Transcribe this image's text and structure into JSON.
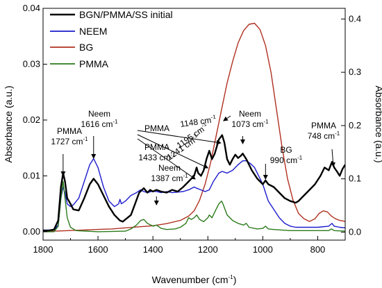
{
  "chart_data": {
    "type": "line",
    "xlabel": "Wavenumber (cm",
    "xlabel_sup": "-1",
    "xlabel_end": ")",
    "ylabel_left": "Absorbance (a.u.)",
    "ylabel_right": "Absorbance (a.u.)",
    "xlim": [
      1800,
      700
    ],
    "ylim_left": [
      -0.0015,
      0.04
    ],
    "ylim_right": [
      -0.015,
      0.42
    ],
    "x_ticks": [
      1800,
      1600,
      1400,
      1200,
      1000,
      800
    ],
    "y_ticks_left": [
      "0.00",
      "0.01",
      "0.02",
      "0.03",
      "0.04"
    ],
    "y_ticks_right": [
      "0.0",
      "0.1",
      "0.2",
      "0.3",
      "0.4"
    ],
    "legend_position": "top-left",
    "series": [
      {
        "name": "BGN/PMMA/SS initial",
        "color": "#000000",
        "axis": "left",
        "points": [
          [
            1800,
            0.0002
          ],
          [
            1780,
            0.0002
          ],
          [
            1760,
            0.0004
          ],
          [
            1745,
            0.002
          ],
          [
            1735,
            0.008
          ],
          [
            1727,
            0.0105
          ],
          [
            1720,
            0.009
          ],
          [
            1712,
            0.006
          ],
          [
            1700,
            0.005
          ],
          [
            1690,
            0.004
          ],
          [
            1670,
            0.0038
          ],
          [
            1650,
            0.006
          ],
          [
            1630,
            0.0085
          ],
          [
            1616,
            0.0095
          ],
          [
            1600,
            0.0085
          ],
          [
            1580,
            0.0065
          ],
          [
            1560,
            0.0045
          ],
          [
            1540,
            0.003
          ],
          [
            1520,
            0.002
          ],
          [
            1510,
            0.0018
          ],
          [
            1500,
            0.0022
          ],
          [
            1480,
            0.003
          ],
          [
            1465,
            0.005
          ],
          [
            1450,
            0.007
          ],
          [
            1440,
            0.0075
          ],
          [
            1433,
            0.0078
          ],
          [
            1420,
            0.007
          ],
          [
            1410,
            0.0075
          ],
          [
            1400,
            0.0072
          ],
          [
            1387,
            0.0075
          ],
          [
            1370,
            0.0072
          ],
          [
            1350,
            0.007
          ],
          [
            1330,
            0.0075
          ],
          [
            1310,
            0.0072
          ],
          [
            1290,
            0.008
          ],
          [
            1270,
            0.009
          ],
          [
            1260,
            0.0095
          ],
          [
            1250,
            0.01
          ],
          [
            1241,
            0.0115
          ],
          [
            1235,
            0.0105
          ],
          [
            1225,
            0.01
          ],
          [
            1215,
            0.011
          ],
          [
            1205,
            0.013
          ],
          [
            1195,
            0.0145
          ],
          [
            1185,
            0.013
          ],
          [
            1175,
            0.014
          ],
          [
            1160,
            0.0165
          ],
          [
            1148,
            0.0173
          ],
          [
            1140,
            0.016
          ],
          [
            1130,
            0.013
          ],
          [
            1120,
            0.012
          ],
          [
            1110,
            0.013
          ],
          [
            1100,
            0.0138
          ],
          [
            1090,
            0.0132
          ],
          [
            1080,
            0.0136
          ],
          [
            1073,
            0.014
          ],
          [
            1060,
            0.013
          ],
          [
            1050,
            0.012
          ],
          [
            1040,
            0.011
          ],
          [
            1020,
            0.0095
          ],
          [
            1000,
            0.0085
          ],
          [
            990,
            0.0092
          ],
          [
            980,
            0.0085
          ],
          [
            960,
            0.008
          ],
          [
            940,
            0.007
          ],
          [
            920,
            0.006
          ],
          [
            900,
            0.0055
          ],
          [
            880,
            0.0052
          ],
          [
            870,
            0.0055
          ],
          [
            850,
            0.0065
          ],
          [
            830,
            0.0075
          ],
          [
            810,
            0.0085
          ],
          [
            790,
            0.01
          ],
          [
            775,
            0.0115
          ],
          [
            760,
            0.011
          ],
          [
            748,
            0.0125
          ],
          [
            740,
            0.0115
          ],
          [
            730,
            0.0108
          ],
          [
            720,
            0.01
          ],
          [
            710,
            0.0112
          ],
          [
            700,
            0.012
          ]
        ]
      },
      {
        "name": "NEEM",
        "color": "#1a1acc",
        "axis": "left",
        "points": [
          [
            1800,
            0.0003
          ],
          [
            1760,
            0.0003
          ],
          [
            1745,
            0.0012
          ],
          [
            1735,
            0.006
          ],
          [
            1727,
            0.008
          ],
          [
            1720,
            0.007
          ],
          [
            1712,
            0.005
          ],
          [
            1700,
            0.0045
          ],
          [
            1690,
            0.0048
          ],
          [
            1670,
            0.006
          ],
          [
            1650,
            0.009
          ],
          [
            1630,
            0.012
          ],
          [
            1616,
            0.0131
          ],
          [
            1600,
            0.0115
          ],
          [
            1580,
            0.008
          ],
          [
            1560,
            0.0055
          ],
          [
            1540,
            0.0045
          ],
          [
            1525,
            0.005
          ],
          [
            1520,
            0.0058
          ],
          [
            1515,
            0.005
          ],
          [
            1500,
            0.0055
          ],
          [
            1480,
            0.0065
          ],
          [
            1460,
            0.007
          ],
          [
            1445,
            0.0075
          ],
          [
            1433,
            0.0072
          ],
          [
            1420,
            0.007
          ],
          [
            1400,
            0.0073
          ],
          [
            1387,
            0.0072
          ],
          [
            1370,
            0.007
          ],
          [
            1350,
            0.0072
          ],
          [
            1330,
            0.007
          ],
          [
            1310,
            0.0071
          ],
          [
            1290,
            0.0072
          ],
          [
            1270,
            0.0075
          ],
          [
            1250,
            0.008
          ],
          [
            1241,
            0.0078
          ],
          [
            1225,
            0.0075
          ],
          [
            1210,
            0.0072
          ],
          [
            1195,
            0.0075
          ],
          [
            1180,
            0.009
          ],
          [
            1160,
            0.0105
          ],
          [
            1148,
            0.0108
          ],
          [
            1130,
            0.0105
          ],
          [
            1110,
            0.011
          ],
          [
            1090,
            0.012
          ],
          [
            1073,
            0.0127
          ],
          [
            1060,
            0.0127
          ],
          [
            1045,
            0.0122
          ],
          [
            1030,
            0.0115
          ],
          [
            1015,
            0.01
          ],
          [
            1000,
            0.0085
          ],
          [
            990,
            0.007
          ],
          [
            980,
            0.0055
          ],
          [
            960,
            0.004
          ],
          [
            940,
            0.0025
          ],
          [
            920,
            0.0015
          ],
          [
            900,
            0.001
          ],
          [
            880,
            0.0008
          ],
          [
            850,
            0.0008
          ],
          [
            800,
            0.0008
          ],
          [
            760,
            0.001
          ],
          [
            748,
            0.0015
          ],
          [
            740,
            0.001
          ],
          [
            720,
            0.0008
          ],
          [
            700,
            0.0007
          ]
        ]
      },
      {
        "name": "BG",
        "color": "#b03020",
        "axis": "right",
        "points": [
          [
            1800,
            0.002
          ],
          [
            1750,
            0.002
          ],
          [
            1700,
            0.003
          ],
          [
            1650,
            0.004
          ],
          [
            1600,
            0.005
          ],
          [
            1550,
            0.006
          ],
          [
            1500,
            0.008
          ],
          [
            1450,
            0.01
          ],
          [
            1400,
            0.012
          ],
          [
            1350,
            0.016
          ],
          [
            1300,
            0.022
          ],
          [
            1270,
            0.03
          ],
          [
            1250,
            0.04
          ],
          [
            1230,
            0.06
          ],
          [
            1210,
            0.09
          ],
          [
            1190,
            0.13
          ],
          [
            1170,
            0.18
          ],
          [
            1150,
            0.23
          ],
          [
            1130,
            0.28
          ],
          [
            1110,
            0.32
          ],
          [
            1090,
            0.355
          ],
          [
            1070,
            0.378
          ],
          [
            1050,
            0.39
          ],
          [
            1030,
            0.392
          ],
          [
            1010,
            0.38
          ],
          [
            990,
            0.35
          ],
          [
            970,
            0.3
          ],
          [
            950,
            0.23
          ],
          [
            930,
            0.16
          ],
          [
            910,
            0.1
          ],
          [
            890,
            0.06
          ],
          [
            870,
            0.035
          ],
          [
            850,
            0.025
          ],
          [
            830,
            0.02
          ],
          [
            810,
            0.025
          ],
          [
            795,
            0.035
          ],
          [
            780,
            0.04
          ],
          [
            765,
            0.038
          ],
          [
            750,
            0.03
          ],
          [
            735,
            0.025
          ],
          [
            720,
            0.022
          ],
          [
            700,
            0.02
          ]
        ]
      },
      {
        "name": "PMMA",
        "color": "#2a7a1a",
        "axis": "left",
        "points": [
          [
            1800,
            0.0
          ],
          [
            1760,
            0.0
          ],
          [
            1745,
            0.001
          ],
          [
            1735,
            0.006
          ],
          [
            1727,
            0.009
          ],
          [
            1720,
            0.006
          ],
          [
            1712,
            0.0025
          ],
          [
            1700,
            0.0008
          ],
          [
            1680,
            0.0002
          ],
          [
            1600,
            0.0
          ],
          [
            1500,
            0.0001
          ],
          [
            1480,
            0.0005
          ],
          [
            1460,
            0.0012
          ],
          [
            1445,
            0.002
          ],
          [
            1433,
            0.0022
          ],
          [
            1420,
            0.0015
          ],
          [
            1400,
            0.001
          ],
          [
            1387,
            0.0012
          ],
          [
            1370,
            0.0006
          ],
          [
            1350,
            0.0004
          ],
          [
            1320,
            0.0005
          ],
          [
            1300,
            0.0008
          ],
          [
            1280,
            0.0015
          ],
          [
            1270,
            0.0025
          ],
          [
            1260,
            0.0022
          ],
          [
            1250,
            0.0025
          ],
          [
            1241,
            0.003
          ],
          [
            1230,
            0.0022
          ],
          [
            1215,
            0.0018
          ],
          [
            1200,
            0.0025
          ],
          [
            1195,
            0.003
          ],
          [
            1185,
            0.0025
          ],
          [
            1170,
            0.004
          ],
          [
            1160,
            0.005
          ],
          [
            1150,
            0.0055
          ],
          [
            1145,
            0.005
          ],
          [
            1130,
            0.003
          ],
          [
            1110,
            0.002
          ],
          [
            1090,
            0.0015
          ],
          [
            1070,
            0.0012
          ],
          [
            1060,
            0.0015
          ],
          [
            1050,
            0.0008
          ],
          [
            1020,
            0.0005
          ],
          [
            1000,
            0.0006
          ],
          [
            990,
            0.001
          ],
          [
            980,
            0.0005
          ],
          [
            960,
            0.0004
          ],
          [
            900,
            0.0002
          ],
          [
            800,
            0.0002
          ],
          [
            760,
            0.0002
          ],
          [
            750,
            0.0005
          ],
          [
            740,
            0.0002
          ],
          [
            700,
            0.0001
          ]
        ]
      }
    ],
    "annotations": [
      {
        "id": "pmma-1727",
        "lines": [
          "PMMA",
          "1727 cm"
        ],
        "sup": "-1"
      },
      {
        "id": "neem-1616",
        "lines": [
          "Neem",
          "1616 cm"
        ],
        "sup": "-1"
      },
      {
        "id": "pmma-1433",
        "lines": [
          "PMMA",
          "1433 cm"
        ],
        "sup": "-1"
      },
      {
        "id": "neem-1387",
        "lines": [
          "Neem",
          "1387 cm"
        ],
        "sup": "-1"
      },
      {
        "id": "pmma-group",
        "lines": [
          "PMMA"
        ],
        "sup": ""
      },
      {
        "id": "pmma-1148",
        "lines": [
          "1148 cm"
        ],
        "sup": "-1"
      },
      {
        "id": "pmma-1195",
        "lines": [
          "1195 cm"
        ],
        "sup": "-1"
      },
      {
        "id": "pmma-1241",
        "lines": [
          "1241 cm"
        ],
        "sup": "-1"
      },
      {
        "id": "neem-1073",
        "lines": [
          "Neem",
          "1073 cm"
        ],
        "sup": "-1"
      },
      {
        "id": "bg-990",
        "lines": [
          "BG",
          "990 cm"
        ],
        "sup": "-1"
      },
      {
        "id": "pmma-748",
        "lines": [
          "PMMA",
          "748 cm"
        ],
        "sup": "-1"
      }
    ]
  }
}
